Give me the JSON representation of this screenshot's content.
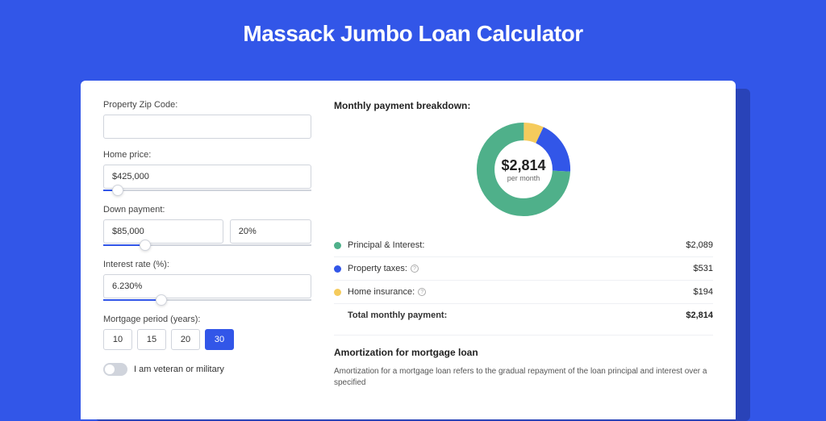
{
  "page_title": "Massack Jumbo Loan Calculator",
  "colors": {
    "page_bg": "#3256e8",
    "shadow_bg": "#2943b8",
    "card_bg": "#ffffff",
    "accent": "#3256e8",
    "border": "#d0d4dc",
    "text_dark": "#222222",
    "text_mid": "#444444",
    "divider": "#eef0f4",
    "donut_green": "#4fb08a",
    "donut_blue": "#3256e8",
    "donut_yellow": "#f5cb5c"
  },
  "form": {
    "zip_label": "Property Zip Code:",
    "zip_value": "",
    "home_price_label": "Home price:",
    "home_price_value": "$425,000",
    "home_price_slider_pct": 7,
    "down_payment_label": "Down payment:",
    "down_payment_value": "$85,000",
    "down_payment_pct_value": "20%",
    "down_payment_slider_pct": 20,
    "interest_label": "Interest rate (%):",
    "interest_value": "6.230%",
    "interest_slider_pct": 28,
    "period_label": "Mortgage period (years):",
    "period_options": [
      "10",
      "15",
      "20",
      "30"
    ],
    "period_selected": "30",
    "veteran_label": "I am veteran or military",
    "veteran_on": false
  },
  "breakdown": {
    "title": "Monthly payment breakdown:",
    "center_amount": "$2,814",
    "center_sub": "per month",
    "donut": {
      "total": 2814,
      "segments": [
        {
          "label": "Principal & Interest:",
          "value_text": "$2,089",
          "value": 2089,
          "color": "#4fb08a",
          "has_info": false
        },
        {
          "label": "Property taxes:",
          "value_text": "$531",
          "value": 531,
          "color": "#3256e8",
          "has_info": true
        },
        {
          "label": "Home insurance:",
          "value_text": "$194",
          "value": 194,
          "color": "#f5cb5c",
          "has_info": true
        }
      ]
    },
    "total_label": "Total monthly payment:",
    "total_value": "$2,814"
  },
  "amortization": {
    "title": "Amortization for mortgage loan",
    "body": "Amortization for a mortgage loan refers to the gradual repayment of the loan principal and interest over a specified"
  }
}
